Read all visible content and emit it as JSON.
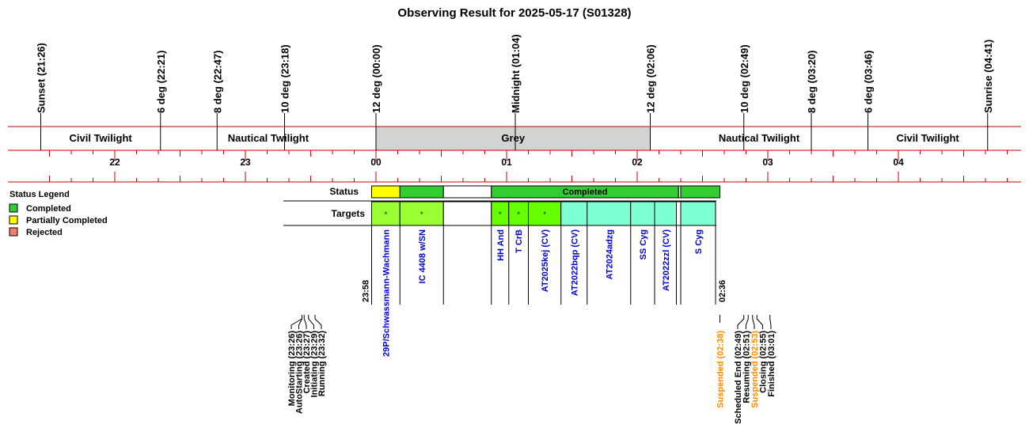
{
  "chart_data": {
    "type": "timeline",
    "title": "Observing Result for 2025-05-17 (S01328)",
    "sun_events": [
      {
        "label": "Sunset (21:26)",
        "time": "21:26"
      },
      {
        "label": "6 deg (22:21)",
        "time": "22:21"
      },
      {
        "label": "8 deg (22:47)",
        "time": "22:47"
      },
      {
        "label": "10 deg (23:18)",
        "time": "23:18"
      },
      {
        "label": "12 deg (00:00)",
        "time": "00:00"
      },
      {
        "label": "Midnight (01:04)",
        "time": "01:04"
      },
      {
        "label": "12 deg (02:06)",
        "time": "02:06"
      },
      {
        "label": "10 deg (02:49)",
        "time": "02:49"
      },
      {
        "label": "8 deg (03:20)",
        "time": "03:20"
      },
      {
        "label": "6 deg (03:46)",
        "time": "03:46"
      },
      {
        "label": "Sunrise (04:41)",
        "time": "04:41"
      }
    ],
    "phases": [
      {
        "label": "Civil Twilight",
        "start": "21:26",
        "end": "22:21",
        "shaded": false
      },
      {
        "label": "Nautical Twilight",
        "start": "22:21",
        "end": "00:00",
        "shaded": false
      },
      {
        "label": "Grey",
        "start": "00:00",
        "end": "02:06",
        "shaded": true,
        "color": "#d3d3d3"
      },
      {
        "label": "Nautical Twilight",
        "start": "02:06",
        "end": "03:46",
        "shaded": false
      },
      {
        "label": "Civil Twilight",
        "start": "03:46",
        "end": "04:41",
        "shaded": false
      }
    ],
    "hour_labels": [
      "22",
      "23",
      "00",
      "01",
      "02",
      "03",
      "04"
    ],
    "legend": {
      "title": "Status Legend",
      "items": [
        {
          "label": "Completed",
          "color": "#33cc33"
        },
        {
          "label": "Partially Completed",
          "color": "#ffff00"
        },
        {
          "label": "Rejected",
          "color": "#f08070"
        }
      ]
    },
    "status_row_label": "Status",
    "targets_row_label": "Targets",
    "status_segments": [
      {
        "start": "23:58",
        "end": "00:11",
        "color": "#ffff00",
        "text": ""
      },
      {
        "start": "00:11",
        "end": "00:31",
        "color": "#33cc33",
        "text": ""
      },
      {
        "start": "00:31",
        "end": "00:53",
        "color": "#ffffff",
        "text": ""
      },
      {
        "start": "00:53",
        "end": "02:19",
        "color": "#33cc33",
        "text": "Completed"
      },
      {
        "start": "02:19",
        "end": "02:20",
        "color": "#ffffff",
        "text": ""
      },
      {
        "start": "02:20",
        "end": "02:38",
        "color": "#33cc33",
        "text": ""
      }
    ],
    "targets": [
      {
        "name": "29P/Schwassmann-Wachmann",
        "start": "23:58",
        "end": "00:11",
        "color": "#99ff33",
        "mark": "*",
        "text_color": "#0000cc"
      },
      {
        "name": "IC 4408 w/SN",
        "start": "00:11",
        "end": "00:31",
        "color": "#99ff33",
        "mark": "*",
        "text_color": "#0000cc"
      },
      {
        "name": "",
        "start": "00:31",
        "end": "00:53",
        "color": "#ffffff",
        "mark": "",
        "text_color": "#0000cc"
      },
      {
        "name": "HH And",
        "start": "00:53",
        "end": "01:01",
        "color": "#66ff00",
        "mark": "*",
        "text_color": "#0000cc"
      },
      {
        "name": "T CrB",
        "start": "01:01",
        "end": "01:10",
        "color": "#66ff00",
        "mark": "*",
        "text_color": "#0000cc"
      },
      {
        "name": "AT2025kej (CV)",
        "start": "01:10",
        "end": "01:25",
        "color": "#66ff00",
        "mark": "*",
        "text_color": "#0000cc"
      },
      {
        "name": "AT2022bqp (CV)",
        "start": "01:25",
        "end": "01:37",
        "color": "#7fffd4",
        "mark": "",
        "text_color": "#0000cc"
      },
      {
        "name": "AT2024adzg",
        "start": "01:37",
        "end": "01:57",
        "color": "#7fffd4",
        "mark": "",
        "text_color": "#0000cc"
      },
      {
        "name": "SS Cyg",
        "start": "01:57",
        "end": "02:08",
        "color": "#7fffd4",
        "mark": "",
        "text_color": "#0000cc"
      },
      {
        "name": "AT2022zzl (CV)",
        "start": "02:08",
        "end": "02:18",
        "color": "#7fffd4",
        "mark": "",
        "text_color": "#0000cc"
      },
      {
        "name": "",
        "start": "02:18",
        "end": "02:20",
        "color": "#ffffff",
        "mark": "",
        "text_color": "#0000cc"
      },
      {
        "name": "S Cyg",
        "start": "02:20",
        "end": "02:36",
        "color": "#7fffd4",
        "mark": "",
        "text_color": "#0000cc"
      }
    ],
    "start_time_label": "23:58",
    "end_time_label": "02:36",
    "events_left": [
      {
        "label": "Monitoring (23:26)",
        "time": "23:26",
        "color": "#000000"
      },
      {
        "label": "AutoStarting (23:26)",
        "time": "23:26",
        "color": "#000000"
      },
      {
        "label": "Created (23:27)",
        "time": "23:27",
        "color": "#000000"
      },
      {
        "label": "Initiating (23:29)",
        "time": "23:29",
        "color": "#000000"
      },
      {
        "label": "Running (23:32)",
        "time": "23:32",
        "color": "#000000"
      }
    ],
    "events_right": [
      {
        "label": "Suspended (02:38)",
        "time": "02:38",
        "color": "#ff8c00"
      },
      {
        "label": "Scheduled End (02:49)",
        "time": "02:49",
        "color": "#000000"
      },
      {
        "label": "Resuming (02:51)",
        "time": "02:51",
        "color": "#000000"
      },
      {
        "label": "Suspended (02:53)",
        "time": "02:53",
        "color": "#ff8c00"
      },
      {
        "label": "Closing (02:55)",
        "time": "02:55",
        "color": "#000000"
      },
      {
        "label": "Finished (03:01)",
        "time": "03:01",
        "color": "#000000"
      }
    ]
  }
}
